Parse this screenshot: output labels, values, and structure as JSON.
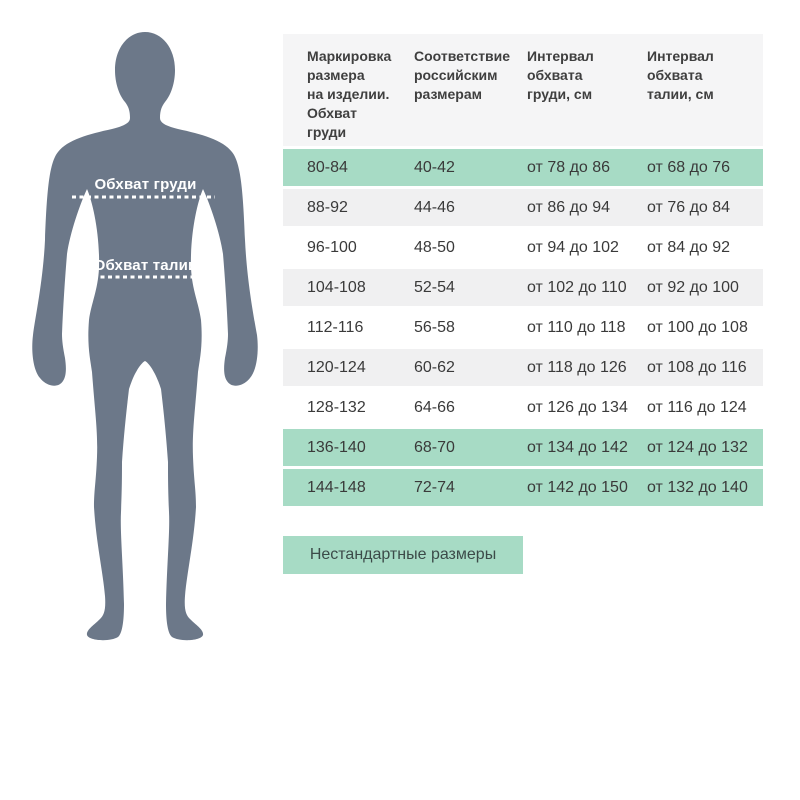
{
  "colors": {
    "green": "#a7dbc5",
    "gray": "#f0f0f1",
    "header_bg": "#f5f5f6",
    "silhouette": "#6c7889",
    "table_text": "#3a3a3a",
    "header_text": "#3f3f3f",
    "button_text": "#3c4b49",
    "figure_label_text": "#ffffff"
  },
  "figure": {
    "chest_label": "Обхват груди",
    "waist_label": "Обхват талии"
  },
  "table": {
    "display_headers": [
      "Маркировка\nразмера\nна изделии.\nОбхват\nгруди",
      "Соответствие\nроссийским\nразмерам",
      "Интервал\nобхвата\nгруди, см",
      "Интервал\nобхвата\nталии, см"
    ],
    "row_styles": [
      "green",
      "gray",
      "white",
      "gray",
      "white",
      "gray",
      "white",
      "green",
      "green"
    ]
  },
  "button": {
    "label": "Нестандартные размеры"
  },
  "chart_data": {
    "type": "table",
    "columns": [
      "Маркировка размера на изделии. Обхват груди",
      "Соответствие российским размерам",
      "Интервал обхвата груди, см",
      "Интервал обхвата талии, см"
    ],
    "rows": [
      [
        "80-84",
        "40-42",
        "от 78 до 86",
        "от 68 до 76"
      ],
      [
        "88-92",
        "44-46",
        "от 86 до 94",
        "от 76 до 84"
      ],
      [
        "96-100",
        "48-50",
        "от 94 до 102",
        "от 84 до 92"
      ],
      [
        "104-108",
        "52-54",
        "от 102 до 110",
        "от 92 до 100"
      ],
      [
        "112-116",
        "56-58",
        "от 110 до 118",
        "от 100 до 108"
      ],
      [
        "120-124",
        "60-62",
        "от 118 до 126",
        "от 108 до 116"
      ],
      [
        "128-132",
        "64-66",
        "от 126 до 134",
        "от 116 до 124"
      ],
      [
        "136-140",
        "68-70",
        "от 134 до 142",
        "от 124 до 132"
      ],
      [
        "144-148",
        "72-74",
        "от 142 до 150",
        "от 132 до 140"
      ]
    ],
    "highlighted_row_indices": [
      0,
      7,
      8
    ],
    "annotations": [
      "Обхват груди",
      "Обхват талии",
      "Нестандартные размеры"
    ]
  }
}
